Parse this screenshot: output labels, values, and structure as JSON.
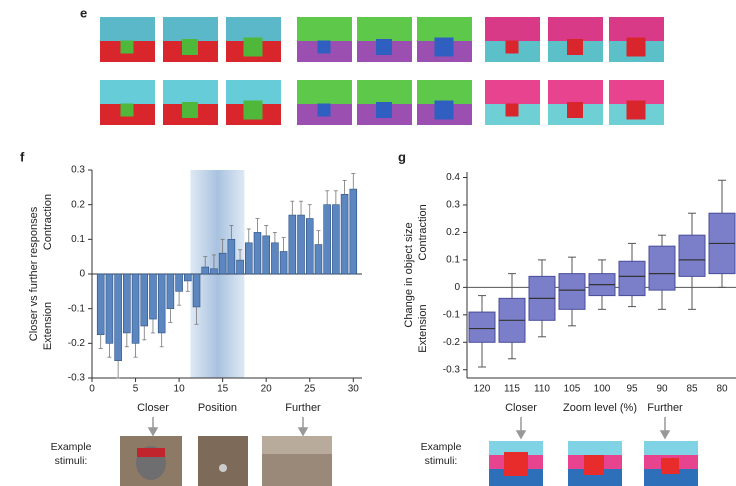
{
  "panel_e": {
    "label": "e"
  },
  "chart_data": [
    {
      "type": "bar",
      "panel": "f",
      "ylabel": "Closer vs further responses",
      "upper_label": "Contraction",
      "lower_label": "Extension",
      "xlabel": "Position",
      "annotations": [
        "Closer",
        "Further"
      ],
      "stimuli_label": "Example stimuli:",
      "x": [
        1,
        2,
        3,
        4,
        5,
        6,
        7,
        8,
        9,
        10,
        11,
        12,
        13,
        14,
        15,
        16,
        17,
        18,
        19,
        20,
        21,
        22,
        23,
        24,
        25,
        26,
        27,
        28,
        29,
        30
      ],
      "values": [
        -0.175,
        -0.2,
        -0.25,
        -0.17,
        -0.2,
        -0.15,
        -0.13,
        -0.17,
        -0.1,
        -0.05,
        -0.02,
        -0.095,
        0.02,
        0.015,
        0.06,
        0.1,
        0.04,
        0.09,
        0.12,
        0.11,
        0.09,
        0.065,
        0.17,
        0.17,
        0.16,
        0.085,
        0.2,
        0.2,
        0.23,
        0.245
      ],
      "errors": [
        0.04,
        0.04,
        0.05,
        0.04,
        0.04,
        0.04,
        0.04,
        0.04,
        0.04,
        0.04,
        0.03,
        0.05,
        0.03,
        0.04,
        0.04,
        0.04,
        0.03,
        0.04,
        0.04,
        0.03,
        0.03,
        0.04,
        0.04,
        0.04,
        0.04,
        0.04,
        0.04,
        0.04,
        0.04,
        0.045
      ],
      "color": "#5b86c0",
      "highlight": [
        11.3,
        17.5
      ],
      "xlim": [
        0,
        31
      ],
      "xticks": [
        0,
        5,
        10,
        15,
        20,
        25,
        30
      ],
      "ylim": [
        -0.3,
        0.3
      ],
      "yticks": [
        0.3,
        0.2,
        0.1,
        0,
        -0.1,
        -0.2,
        -0.3
      ]
    },
    {
      "type": "box",
      "panel": "g",
      "ylabel": "Change in object size",
      "upper_label": "Contraction",
      "lower_label": "Extension",
      "xlabel": "Zoom level (%)",
      "annotations": [
        "Closer",
        "Further"
      ],
      "stimuli_label": "Example stimuli:",
      "categories": [
        "120",
        "115",
        "110",
        "105",
        "100",
        "95",
        "90",
        "85",
        "80"
      ],
      "low": [
        -0.29,
        -0.26,
        -0.18,
        -0.14,
        -0.08,
        -0.07,
        -0.08,
        -0.08,
        0.0
      ],
      "q1": [
        -0.2,
        -0.2,
        -0.12,
        -0.08,
        -0.03,
        -0.03,
        -0.01,
        0.04,
        0.05
      ],
      "median": [
        -0.15,
        -0.12,
        -0.04,
        -0.01,
        0.01,
        0.04,
        0.05,
        0.1,
        0.16
      ],
      "q3": [
        -0.09,
        -0.04,
        0.04,
        0.05,
        0.05,
        0.095,
        0.15,
        0.19,
        0.27
      ],
      "high": [
        -0.03,
        0.05,
        0.1,
        0.11,
        0.1,
        0.16,
        0.19,
        0.27,
        0.39
      ],
      "color": "#7b7fc9",
      "zero_line": true,
      "ylim": [
        -0.33,
        0.42
      ],
      "yticks": [
        0.4,
        0.3,
        0.2,
        0.1,
        0,
        -0.1,
        -0.2,
        -0.3
      ]
    }
  ]
}
